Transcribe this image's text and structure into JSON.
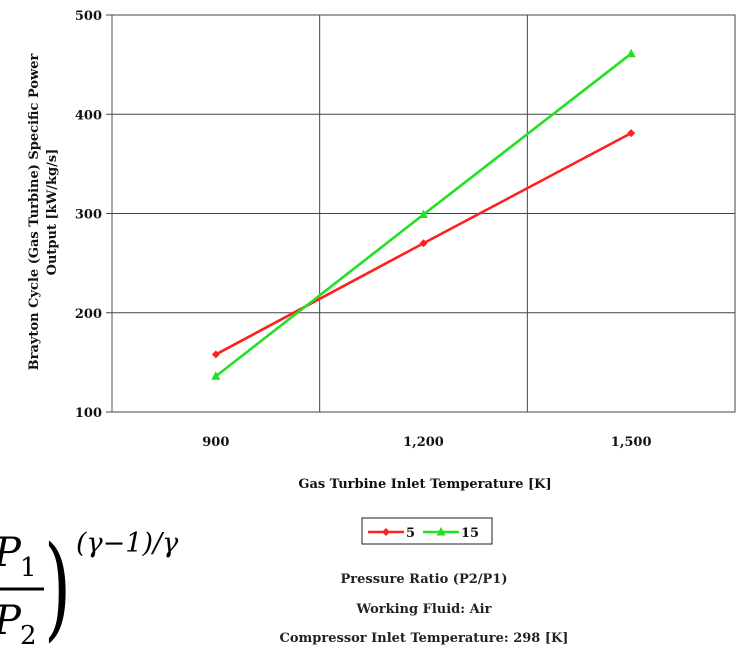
{
  "chart_data": {
    "type": "line",
    "x": [
      900,
      1200,
      1500
    ],
    "x_tick_labels": [
      "900",
      "1,200",
      "1,500"
    ],
    "xlim": [
      750,
      1650
    ],
    "y_ticks": [
      100,
      200,
      300,
      400,
      500
    ],
    "ylim": [
      100,
      500
    ],
    "xlabel": "Gas Turbine Inlet Temperature [K]",
    "ylabel_line1": "Brayton Cycle (Gas Turbine) Specific Power",
    "ylabel_line2": "Output [kW/kg/s]",
    "grid": true,
    "legend_position": "bottom",
    "series": [
      {
        "name": "5",
        "color": "#ff2020",
        "marker": "diamond",
        "values": [
          158,
          270,
          381
        ]
      },
      {
        "name": "15",
        "color": "#22e022",
        "marker": "triangle",
        "values": [
          136,
          299,
          461
        ]
      }
    ],
    "notes": [
      "Pressure Ratio (P2/P1)",
      "Working Fluid:  Air",
      "Compressor Inlet Temperature:  298 [K]"
    ]
  },
  "formula": {
    "numerator": "P",
    "numerator_sub": "1",
    "denominator": "P",
    "denominator_sub": "2",
    "exponent": "(γ−1)/γ",
    "paren": ")"
  }
}
